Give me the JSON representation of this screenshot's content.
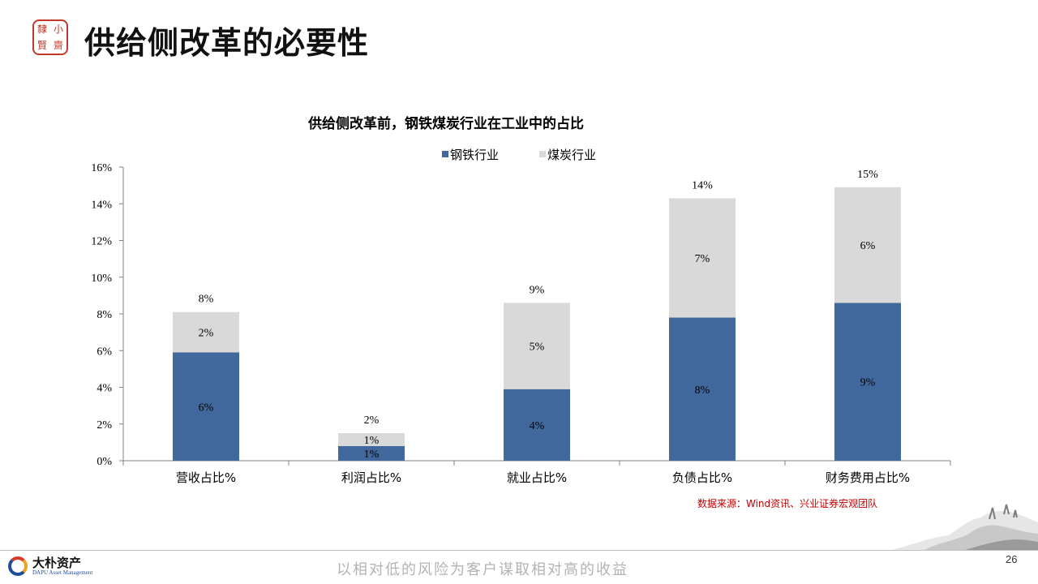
{
  "header": {
    "stamp_chars": [
      "小",
      "隸",
      "賢",
      "齋"
    ],
    "title": "供给侧改革的必要性"
  },
  "colors": {
    "steel": "#41689c",
    "coal": "#d9d9d9",
    "source_red": "#c00000",
    "stamp_red": "#c0392b"
  },
  "chart_data": {
    "type": "bar",
    "stacked": true,
    "title": "供给侧改革前，钢铁煤炭行业在工业中的占比",
    "categories": [
      "营收占比%",
      "利润占比%",
      "就业占比%",
      "负债占比%",
      "财务费用占比%"
    ],
    "series": [
      {
        "name": "钢铁行业",
        "color": "#41689c",
        "values": [
          5.9,
          0.8,
          3.9,
          7.8,
          8.6
        ],
        "labels": [
          "6%",
          "1%",
          "4%",
          "8%",
          "9%"
        ]
      },
      {
        "name": "煤炭行业",
        "color": "#d9d9d9",
        "values": [
          2.2,
          0.7,
          4.7,
          6.5,
          6.3
        ],
        "labels": [
          "2%",
          "1%",
          "5%",
          "7%",
          "6%"
        ]
      }
    ],
    "totals": [
      "8%",
      "2%",
      "9%",
      "14%",
      "15%"
    ],
    "ylim": [
      0,
      16
    ],
    "yticks": [
      0,
      2,
      4,
      6,
      8,
      10,
      12,
      14,
      16
    ],
    "ytick_labels": [
      "0%",
      "2%",
      "4%",
      "6%",
      "8%",
      "10%",
      "12%",
      "14%",
      "16%"
    ],
    "legend_position": "top",
    "grid": false
  },
  "source": "数据来源：Wind资讯、兴业证券宏观团队",
  "footer": {
    "logo_cn": "大朴资产",
    "logo_en": "DAPU Asset Management",
    "slogan": "以相对低的风险为客户谋取相对高的收益",
    "page_number": "26"
  }
}
